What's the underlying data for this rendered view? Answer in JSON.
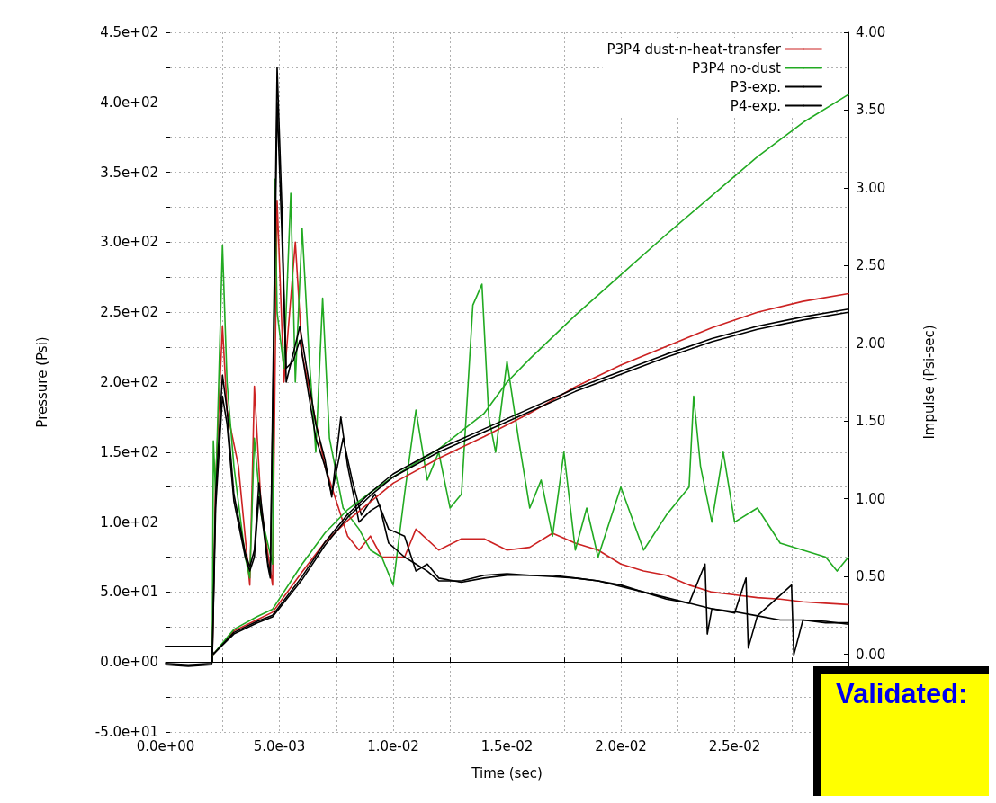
{
  "chart_data": {
    "type": "line",
    "xlabel": "Time (sec)",
    "ylabel": "Pressure (Psi)",
    "y2label": "Impulse (Psi-sec)",
    "xlim": [
      0,
      0.03
    ],
    "ylim": [
      -50,
      450
    ],
    "y2lim": [
      -0.5,
      4.0
    ],
    "xticks": [
      {
        "value": 0,
        "label": "0.0e+00"
      },
      {
        "value": 0.0025,
        "label": null
      },
      {
        "value": 0.005,
        "label": "5.0e-03"
      },
      {
        "value": 0.0075,
        "label": null
      },
      {
        "value": 0.01,
        "label": "1.0e-02"
      },
      {
        "value": 0.0125,
        "label": null
      },
      {
        "value": 0.015,
        "label": "1.5e-02"
      },
      {
        "value": 0.0175,
        "label": null
      },
      {
        "value": 0.02,
        "label": "2.0e-02"
      },
      {
        "value": 0.0225,
        "label": null
      },
      {
        "value": 0.025,
        "label": "2.5e-02"
      },
      {
        "value": 0.0275,
        "label": null
      }
    ],
    "yticks": [
      {
        "value": -50,
        "label": "-5.0e+01"
      },
      {
        "value": -25,
        "label": null
      },
      {
        "value": 0,
        "label": "0.0e+00"
      },
      {
        "value": 25,
        "label": null
      },
      {
        "value": 50,
        "label": "5.0e+01"
      },
      {
        "value": 75,
        "label": null
      },
      {
        "value": 100,
        "label": "1.0e+02"
      },
      {
        "value": 125,
        "label": null
      },
      {
        "value": 150,
        "label": "1.5e+02"
      },
      {
        "value": 175,
        "label": null
      },
      {
        "value": 200,
        "label": "2.0e+02"
      },
      {
        "value": 225,
        "label": null
      },
      {
        "value": 250,
        "label": "2.5e+02"
      },
      {
        "value": 275,
        "label": null
      },
      {
        "value": 300,
        "label": "3.0e+02"
      },
      {
        "value": 325,
        "label": null
      },
      {
        "value": 350,
        "label": "3.5e+02"
      },
      {
        "value": 375,
        "label": null
      },
      {
        "value": 400,
        "label": "4.0e+02"
      },
      {
        "value": 425,
        "label": null
      },
      {
        "value": 450,
        "label": "4.5e+02"
      }
    ],
    "y2ticks": [
      {
        "value": 0,
        "label": "0.00"
      },
      {
        "value": 0.5,
        "label": "0.50"
      },
      {
        "value": 1,
        "label": "1.00"
      },
      {
        "value": 1.5,
        "label": "1.50"
      },
      {
        "value": 2,
        "label": "2.00"
      },
      {
        "value": 2.5,
        "label": "2.50"
      },
      {
        "value": 3,
        "label": "3.00"
      },
      {
        "value": 3.5,
        "label": "3.50"
      },
      {
        "value": 4,
        "label": "4.00"
      }
    ],
    "grid": true,
    "legend": "top right",
    "marker": "none",
    "line_style": "solid",
    "annotations": [
      "Validated:"
    ],
    "series": [
      {
        "name": "P3P4 dust-n-heat-transfer",
        "color": "#cc2222",
        "x": [
          0.00205,
          0.0022,
          0.0025,
          0.0027,
          0.0032,
          0.0037,
          0.0039,
          0.0042,
          0.0047,
          0.0049,
          0.0052,
          0.0057,
          0.006,
          0.0065,
          0.007,
          0.0075,
          0.008,
          0.0085,
          0.009,
          0.0095,
          0.0105,
          0.011,
          0.012,
          0.013,
          0.014,
          0.015,
          0.016,
          0.017,
          0.018,
          0.019,
          0.02,
          0.021,
          0.022,
          0.023,
          0.024,
          0.025,
          0.026,
          0.027,
          0.028,
          0.029,
          0.03
        ],
        "values": [
          0,
          130,
          240,
          180,
          140,
          55,
          197,
          110,
          55,
          330,
          200,
          300,
          220,
          180,
          140,
          115,
          90,
          80,
          90,
          75,
          75,
          95,
          80,
          88,
          88,
          80,
          82,
          92,
          85,
          80,
          70,
          65,
          62,
          55,
          50,
          48,
          46,
          45,
          43,
          42,
          41
        ]
      },
      {
        "name": "P3P4 no-dust",
        "color": "#22aa22",
        "x": [
          0.00205,
          0.0021,
          0.0022,
          0.0025,
          0.0027,
          0.003,
          0.0035,
          0.0037,
          0.0039,
          0.0042,
          0.0047,
          0.0048,
          0.0049,
          0.0052,
          0.0055,
          0.0057,
          0.006,
          0.0063,
          0.0066,
          0.0069,
          0.0072,
          0.0078,
          0.0085,
          0.009,
          0.0095,
          0.01,
          0.0105,
          0.011,
          0.0115,
          0.012,
          0.0125,
          0.013,
          0.0135,
          0.0139,
          0.0142,
          0.0145,
          0.015,
          0.0155,
          0.016,
          0.0165,
          0.017,
          0.0175,
          0.018,
          0.0185,
          0.019,
          0.0195,
          0.02,
          0.021,
          0.022,
          0.023,
          0.0232,
          0.0235,
          0.024,
          0.0245,
          0.025,
          0.026,
          0.027,
          0.028,
          0.029,
          0.0295,
          0.03
        ],
        "values": [
          0,
          158,
          120,
          298,
          200,
          140,
          75,
          60,
          160,
          105,
          70,
          345,
          250,
          210,
          335,
          200,
          310,
          220,
          150,
          260,
          160,
          110,
          95,
          80,
          75,
          55,
          120,
          180,
          130,
          150,
          110,
          120,
          255,
          270,
          175,
          150,
          215,
          160,
          110,
          130,
          90,
          150,
          80,
          110,
          75,
          100,
          125,
          80,
          105,
          125,
          190,
          140,
          100,
          150,
          100,
          110,
          85,
          80,
          75,
          65,
          75
        ]
      },
      {
        "name": "P3-exp.",
        "color": "#000000",
        "x": [
          0,
          0.001,
          0.002,
          0.00205,
          0.0022,
          0.0025,
          0.0027,
          0.003,
          0.0035,
          0.0037,
          0.0039,
          0.0041,
          0.0043,
          0.0045,
          0.0046,
          0.0048,
          0.0049,
          0.0051,
          0.0053,
          0.0056,
          0.0059,
          0.0062,
          0.0066,
          0.007,
          0.0073,
          0.0077,
          0.008,
          0.0085,
          0.009,
          0.0094,
          0.0098,
          0.0105,
          0.011,
          0.0115,
          0.012,
          0.013,
          0.014,
          0.015,
          0.016,
          0.017,
          0.018,
          0.019,
          0.02,
          0.021,
          0.022,
          0.023,
          0.0237,
          0.0238,
          0.024,
          0.025,
          0.0255,
          0.0256,
          0.026,
          0.027,
          0.028,
          0.029,
          0.03
        ],
        "values": [
          -2,
          -3,
          -2,
          0,
          120,
          205,
          180,
          120,
          78,
          68,
          80,
          128,
          100,
          70,
          62,
          300,
          425,
          330,
          200,
          220,
          240,
          210,
          170,
          145,
          118,
          175,
          140,
          100,
          108,
          112,
          85,
          75,
          70,
          65,
          58,
          58,
          62,
          63,
          62,
          62,
          60,
          58,
          55,
          50,
          45,
          42,
          70,
          20,
          38,
          35,
          60,
          10,
          33,
          30,
          30,
          28,
          28
        ]
      },
      {
        "name": "P4-exp.",
        "color": "#000000",
        "x": [
          0,
          0.001,
          0.002,
          0.00205,
          0.0022,
          0.0025,
          0.0027,
          0.003,
          0.0035,
          0.0037,
          0.0039,
          0.0041,
          0.0043,
          0.0045,
          0.0046,
          0.0048,
          0.0049,
          0.0051,
          0.0053,
          0.0056,
          0.0059,
          0.0062,
          0.0066,
          0.007,
          0.0073,
          0.0078,
          0.0082,
          0.0086,
          0.0092,
          0.0098,
          0.0105,
          0.011,
          0.0115,
          0.012,
          0.013,
          0.014,
          0.015,
          0.016,
          0.017,
          0.018,
          0.019,
          0.02,
          0.021,
          0.022,
          0.023,
          0.024,
          0.025,
          0.026,
          0.0275,
          0.0276,
          0.028,
          0.029,
          0.03
        ],
        "values": [
          -1,
          -2,
          -1,
          0,
          110,
          190,
          170,
          115,
          75,
          65,
          75,
          118,
          95,
          68,
          60,
          280,
          400,
          310,
          210,
          215,
          230,
          200,
          160,
          140,
          120,
          160,
          130,
          105,
          120,
          95,
          90,
          65,
          70,
          60,
          57,
          60,
          62,
          62,
          61,
          60,
          58,
          54,
          50,
          46,
          42,
          38,
          36,
          33,
          55,
          5,
          30,
          29,
          27
        ]
      },
      {
        "color": "#cc2222",
        "axis": "y2",
        "x": [
          0.0021,
          0.003,
          0.004,
          0.0047,
          0.006,
          0.007,
          0.008,
          0.009,
          0.01,
          0.012,
          0.014,
          0.016,
          0.018,
          0.02,
          0.022,
          0.024,
          0.026,
          0.028,
          0.03
        ],
        "values": [
          0,
          0.15,
          0.22,
          0.27,
          0.53,
          0.72,
          0.86,
          0.98,
          1.1,
          1.26,
          1.4,
          1.55,
          1.72,
          1.86,
          1.98,
          2.1,
          2.2,
          2.27,
          2.32
        ]
      },
      {
        "color": "#22aa22",
        "axis": "y2",
        "x": [
          0.0021,
          0.003,
          0.004,
          0.0047,
          0.006,
          0.007,
          0.008,
          0.009,
          0.01,
          0.012,
          0.014,
          0.015,
          0.016,
          0.018,
          0.02,
          0.022,
          0.024,
          0.026,
          0.028,
          0.03
        ],
        "values": [
          0,
          0.16,
          0.24,
          0.29,
          0.58,
          0.78,
          0.93,
          1.04,
          1.14,
          1.32,
          1.55,
          1.75,
          1.9,
          2.18,
          2.44,
          2.7,
          2.95,
          3.2,
          3.42,
          3.6
        ]
      },
      {
        "color": "#000000",
        "axis": "y2",
        "x": [
          0,
          0.002,
          0.0021,
          0.003,
          0.004,
          0.0047,
          0.006,
          0.007,
          0.008,
          0.009,
          0.01,
          0.012,
          0.014,
          0.016,
          0.018,
          0.02,
          0.022,
          0.024,
          0.026,
          0.028,
          0.03
        ],
        "values": [
          0.05,
          0.05,
          0,
          0.14,
          0.21,
          0.25,
          0.5,
          0.72,
          0.9,
          1.04,
          1.16,
          1.32,
          1.45,
          1.58,
          1.71,
          1.82,
          1.93,
          2.03,
          2.11,
          2.17,
          2.22
        ]
      },
      {
        "color": "#000000",
        "axis": "y2",
        "x": [
          0,
          0.002,
          0.0021,
          0.003,
          0.004,
          0.0047,
          0.006,
          0.007,
          0.008,
          0.009,
          0.01,
          0.012,
          0.014,
          0.016,
          0.018,
          0.02,
          0.022,
          0.024,
          0.026,
          0.028,
          0.03
        ],
        "values": [
          0.05,
          0.05,
          0,
          0.13,
          0.2,
          0.24,
          0.48,
          0.7,
          0.88,
          1.02,
          1.14,
          1.3,
          1.43,
          1.56,
          1.69,
          1.8,
          1.91,
          2.01,
          2.09,
          2.15,
          2.2
        ]
      }
    ]
  }
}
